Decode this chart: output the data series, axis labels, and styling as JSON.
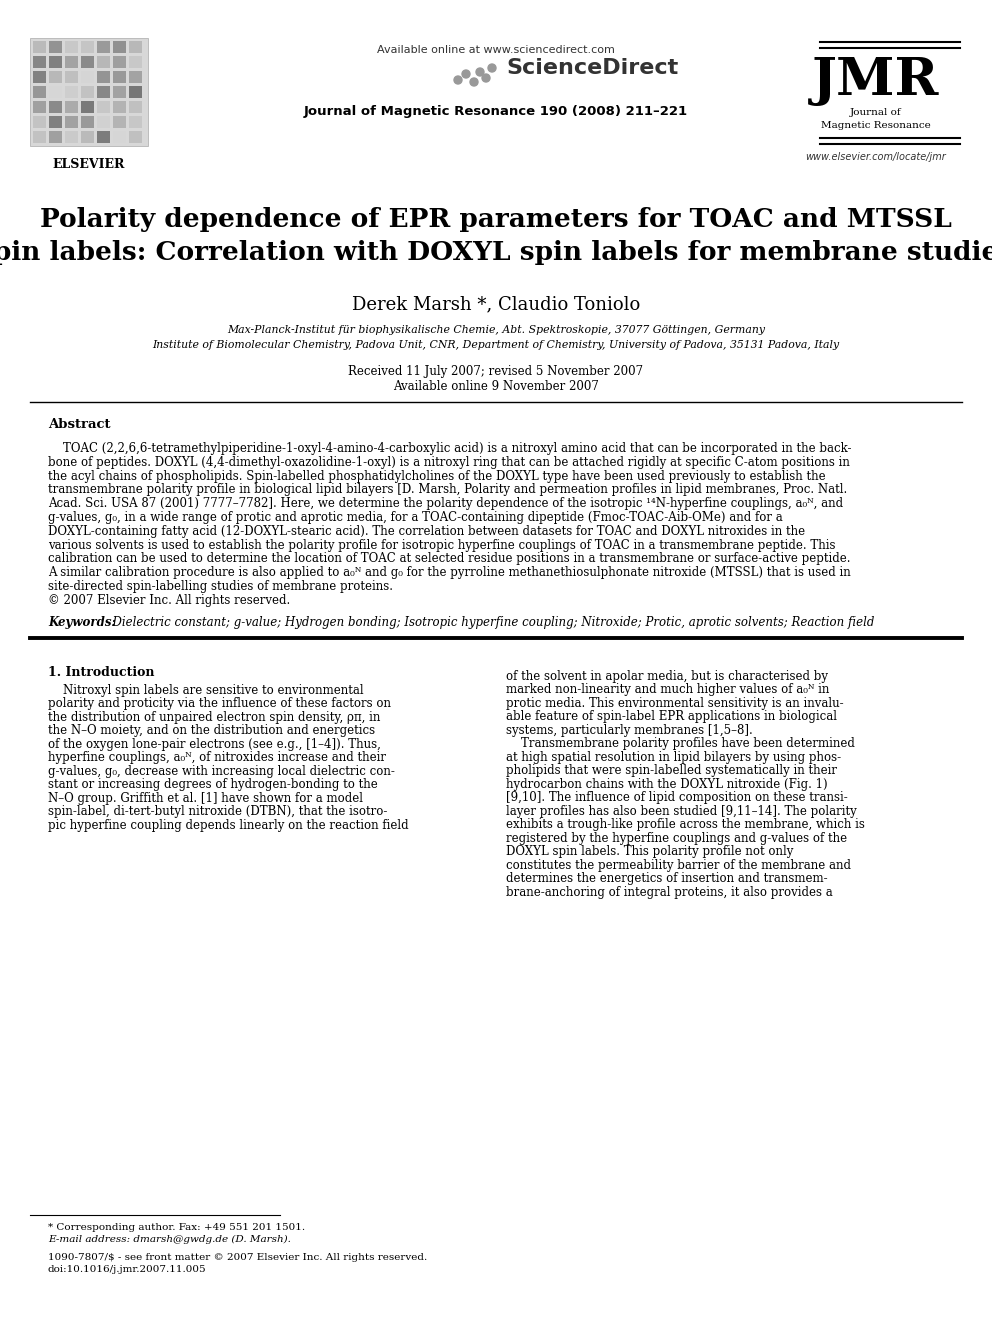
{
  "bg_color": "#ffffff",
  "header_available": "Available online at www.sciencedirect.com",
  "header_sciencedirect": "ScienceDirect",
  "header_journal": "Journal of Magnetic Resonance 190 (2008) 211–221",
  "jmr_abbr": "JMR",
  "jmr_full": "Journal of\nMagnetic Resonance",
  "jmr_url": "www.elsevier.com/locate/jmr",
  "elsevier": "ELSEVIER",
  "title_line1": "Polarity dependence of EPR parameters for TOAC and MTSSL",
  "title_line2": "spin labels: Correlation with DOXYL spin labels for membrane studies",
  "authors": "Derek Marsh *, Claudio Toniolo",
  "affil1": "Max-Planck-Institut für biophysikalische Chemie, Abt. Spektroskopie, 37077 Göttingen, Germany",
  "affil2": "Institute of Biomolecular Chemistry, Padova Unit, CNR, Department of Chemistry, University of Padova, 35131 Padova, Italy",
  "received": "Received 11 July 2007; revised 5 November 2007",
  "available": "Available online 9 November 2007",
  "abstract_title": "Abstract",
  "abstract_lines": [
    "    TOAC (2,2,6,6-tetramethylpiperidine-1-oxyl-4-amino-4-carboxylic acid) is a nitroxyl amino acid that can be incorporated in the back-",
    "bone of peptides. DOXYL (4,4-dimethyl-oxazolidine-1-oxyl) is a nitroxyl ring that can be attached rigidly at specific C-atom positions in",
    "the acyl chains of phospholipids. Spin-labelled phosphatidylcholines of the DOXYL type have been used previously to establish the",
    "transmembrane polarity profile in biological lipid bilayers [D. Marsh, Polarity and permeation profiles in lipid membranes, Proc. Natl.",
    "Acad. Sci. USA 87 (2001) 7777–7782]. Here, we determine the polarity dependence of the isotropic ¹⁴N-hyperfine couplings, a₀ᴺ, and",
    "g-values, g₀, in a wide range of protic and aprotic media, for a TOAC-containing dipeptide (Fmoc-TOAC-Aib-OMe) and for a",
    "DOXYL-containing fatty acid (12-DOXYL-stearic acid). The correlation between datasets for TOAC and DOXYL nitroxides in the",
    "various solvents is used to establish the polarity profile for isotropic hyperfine couplings of TOAC in a transmembrane peptide. This",
    "calibration can be used to determine the location of TOAC at selected residue positions in a transmembrane or surface-active peptide.",
    "A similar calibration procedure is also applied to a₀ᴺ and g₀ for the pyrroline methanethiosulphonate nitroxide (MTSSL) that is used in",
    "site-directed spin-labelling studies of membrane proteins.",
    "© 2007 Elsevier Inc. All rights reserved."
  ],
  "keywords_label": "Keywords:",
  "keywords_text": "  Dielectric constant; g-value; Hydrogen bonding; Isotropic hyperfine coupling; Nitroxide; Protic, aprotic solvents; Reaction field",
  "section1_title": "1. Introduction",
  "intro1_lines": [
    "    Nitroxyl spin labels are sensitive to environmental",
    "polarity and proticity via the influence of these factors on",
    "the distribution of unpaired electron spin density, ρπ, in",
    "the N–O moiety, and on the distribution and energetics",
    "of the oxygen lone-pair electrons (see e.g., [1–4]). Thus,",
    "hyperfine couplings, a₀ᴺ, of nitroxides increase and their",
    "g-values, g₀, decrease with increasing local dielectric con-",
    "stant or increasing degrees of hydrogen-bonding to the",
    "N–O group. Griffith et al. [1] have shown for a model",
    "spin-label, di-tert-butyl nitroxide (DTBN), that the isotro-",
    "pic hyperfine coupling depends linearly on the reaction field"
  ],
  "intro2_lines": [
    "of the solvent in apolar media, but is characterised by",
    "marked non-linearity and much higher values of a₀ᴺ in",
    "protic media. This environmental sensitivity is an invalu-",
    "able feature of spin-label EPR applications in biological",
    "systems, particularly membranes [1,5–8].",
    "    Transmembrane polarity profiles have been determined",
    "at high spatial resolution in lipid bilayers by using phos-",
    "pholipids that were spin-labelled systematically in their",
    "hydrocarbon chains with the DOXYL nitroxide (Fig. 1)",
    "[9,10]. The influence of lipid composition on these transi-",
    "layer profiles has also been studied [9,11–14]. The polarity",
    "exhibits a trough-like profile across the membrane, which is",
    "registered by the hyperfine couplings and g-values of the",
    "DOXYL spin labels. This polarity profile not only",
    "constitutes the permeability barrier of the membrane and",
    "determines the energetics of insertion and transmem-",
    "brane-anchoring of integral proteins, it also provides a"
  ],
  "footnote_star": "* Corresponding author. Fax: +49 551 201 1501.",
  "footnote_email": "E-mail address: dmarsh@gwdg.de (D. Marsh).",
  "issn": "1090-7807/$ - see front matter © 2007 Elsevier Inc. All rights reserved.",
  "doi": "doi:10.1016/j.jmr.2007.11.005"
}
